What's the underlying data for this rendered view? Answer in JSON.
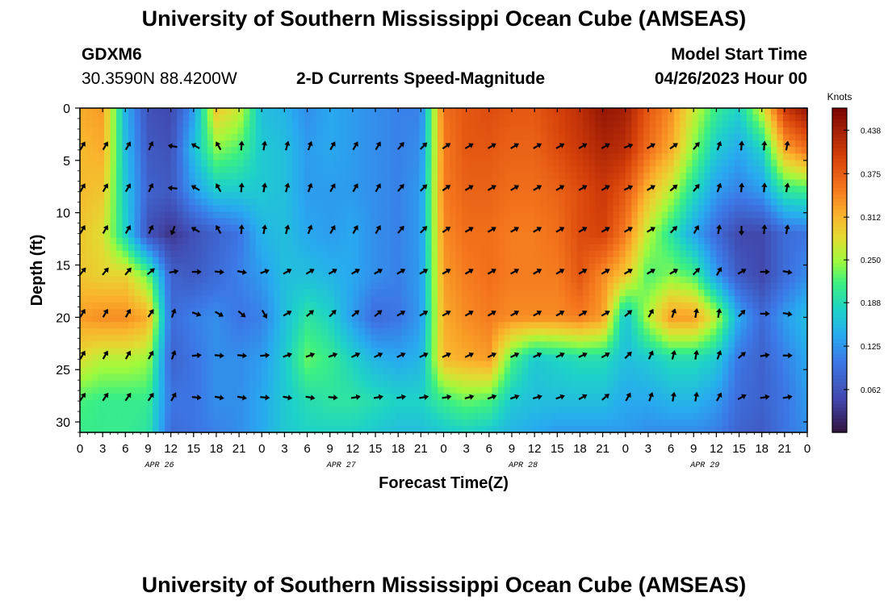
{
  "title": "University of Southern Mississippi Ocean Cube (AMSEAS)",
  "footer_title": "University of Southern Mississippi Ocean Cube (AMSEAS)",
  "station": {
    "name": "GDXM6",
    "coords": "30.3590N  88.4200W"
  },
  "model": {
    "label": "Model Start Time",
    "start": "04/26/2023 Hour 00"
  },
  "colors": {
    "arrow": "#000000",
    "frame": "#000000"
  },
  "chart_data": {
    "type": "heatmap",
    "title": "2-D Currents Speed-Magnitude",
    "xlabel": "Forecast Time(Z)",
    "ylabel": "Depth (ft)",
    "x_ticks": [
      "0",
      "3",
      "6",
      "9",
      "12",
      "15",
      "18",
      "21",
      "0",
      "3",
      "6",
      "9",
      "12",
      "15",
      "18",
      "21",
      "0",
      "3",
      "6",
      "9",
      "12",
      "15",
      "18",
      "21",
      "0",
      "3",
      "6",
      "9",
      "12",
      "15",
      "18",
      "21",
      "0"
    ],
    "day_labels": [
      "APR 26",
      "APR 27",
      "APR 28",
      "APR 29"
    ],
    "xlim_hours": [
      0,
      96
    ],
    "ylim": [
      0,
      31
    ],
    "y_ticks": [
      0,
      5,
      10,
      15,
      20,
      25,
      30
    ],
    "colorbar": {
      "label": "Knots",
      "range": [
        0,
        0.47
      ],
      "ticks": [
        "0.438",
        "0.375",
        "0.312",
        "0.250",
        "0.188",
        "0.125",
        "0.062"
      ],
      "tick_values": [
        0.438,
        0.375,
        0.312,
        0.25,
        0.188,
        0.125,
        0.062
      ]
    },
    "grid_hours": [
      0,
      3,
      6,
      9,
      12,
      15,
      18,
      21,
      24,
      27,
      30,
      33,
      36,
      39,
      42,
      45,
      48,
      51,
      54,
      57,
      60,
      63,
      66,
      69,
      72,
      75,
      78,
      81,
      84,
      87,
      90,
      93,
      96
    ],
    "grid_depths": [
      0,
      4,
      8,
      12,
      16,
      20,
      24,
      28,
      31
    ],
    "speed_knots": [
      [
        0.32,
        0.33,
        0.15,
        0.06,
        0.05,
        0.13,
        0.3,
        0.27,
        0.16,
        0.15,
        0.12,
        0.14,
        0.13,
        0.12,
        0.11,
        0.11,
        0.36,
        0.38,
        0.39,
        0.38,
        0.38,
        0.4,
        0.42,
        0.45,
        0.44,
        0.38,
        0.34,
        0.27,
        0.21,
        0.18,
        0.27,
        0.41,
        0.45
      ],
      [
        0.31,
        0.32,
        0.16,
        0.07,
        0.06,
        0.16,
        0.24,
        0.22,
        0.17,
        0.16,
        0.13,
        0.14,
        0.13,
        0.12,
        0.11,
        0.12,
        0.35,
        0.38,
        0.38,
        0.37,
        0.37,
        0.39,
        0.41,
        0.43,
        0.42,
        0.36,
        0.32,
        0.24,
        0.17,
        0.14,
        0.18,
        0.32,
        0.36
      ],
      [
        0.31,
        0.3,
        0.17,
        0.08,
        0.07,
        0.13,
        0.17,
        0.17,
        0.17,
        0.16,
        0.13,
        0.13,
        0.13,
        0.12,
        0.11,
        0.13,
        0.35,
        0.37,
        0.37,
        0.36,
        0.36,
        0.37,
        0.39,
        0.41,
        0.38,
        0.31,
        0.26,
        0.19,
        0.13,
        0.11,
        0.13,
        0.2,
        0.21
      ],
      [
        0.3,
        0.28,
        0.18,
        0.06,
        0.03,
        0.06,
        0.08,
        0.1,
        0.15,
        0.16,
        0.14,
        0.13,
        0.14,
        0.12,
        0.11,
        0.13,
        0.34,
        0.36,
        0.36,
        0.35,
        0.35,
        0.36,
        0.39,
        0.4,
        0.35,
        0.26,
        0.2,
        0.14,
        0.09,
        0.05,
        0.05,
        0.09,
        0.1
      ],
      [
        0.3,
        0.29,
        0.29,
        0.23,
        0.08,
        0.07,
        0.09,
        0.11,
        0.13,
        0.16,
        0.16,
        0.15,
        0.14,
        0.12,
        0.11,
        0.13,
        0.33,
        0.35,
        0.36,
        0.35,
        0.35,
        0.35,
        0.38,
        0.34,
        0.3,
        0.22,
        0.24,
        0.22,
        0.13,
        0.07,
        0.05,
        0.09,
        0.12
      ],
      [
        0.33,
        0.34,
        0.34,
        0.32,
        0.09,
        0.11,
        0.12,
        0.1,
        0.11,
        0.16,
        0.2,
        0.18,
        0.13,
        0.09,
        0.1,
        0.13,
        0.32,
        0.34,
        0.35,
        0.34,
        0.34,
        0.34,
        0.35,
        0.33,
        0.16,
        0.26,
        0.33,
        0.33,
        0.26,
        0.14,
        0.09,
        0.13,
        0.16
      ],
      [
        0.28,
        0.26,
        0.26,
        0.25,
        0.08,
        0.1,
        0.12,
        0.12,
        0.13,
        0.17,
        0.23,
        0.21,
        0.18,
        0.15,
        0.14,
        0.15,
        0.31,
        0.32,
        0.33,
        0.22,
        0.17,
        0.18,
        0.19,
        0.19,
        0.16,
        0.17,
        0.19,
        0.19,
        0.17,
        0.1,
        0.08,
        0.11,
        0.14
      ],
      [
        0.22,
        0.21,
        0.21,
        0.21,
        0.1,
        0.1,
        0.12,
        0.12,
        0.14,
        0.17,
        0.19,
        0.2,
        0.2,
        0.19,
        0.18,
        0.18,
        0.21,
        0.23,
        0.22,
        0.17,
        0.16,
        0.16,
        0.16,
        0.16,
        0.14,
        0.14,
        0.15,
        0.15,
        0.13,
        0.09,
        0.08,
        0.1,
        0.13
      ],
      [
        0.21,
        0.21,
        0.21,
        0.2,
        0.09,
        0.1,
        0.11,
        0.12,
        0.14,
        0.17,
        0.18,
        0.18,
        0.18,
        0.17,
        0.16,
        0.16,
        0.17,
        0.18,
        0.17,
        0.15,
        0.14,
        0.13,
        0.13,
        0.13,
        0.13,
        0.12,
        0.12,
        0.12,
        0.11,
        0.08,
        0.07,
        0.1,
        0.12
      ]
    ],
    "arrow_depths": [
      3.5,
      7.5,
      11.5,
      15.5,
      19.5,
      23.5,
      27.5
    ],
    "arrow_hours": [
      0,
      3,
      6,
      9,
      12,
      15,
      18,
      21,
      24,
      27,
      30,
      33,
      36,
      39,
      42,
      45,
      48,
      51,
      54,
      57,
      60,
      63,
      66,
      69,
      72,
      75,
      78,
      81,
      84,
      87,
      90,
      93
    ],
    "arrow_dir_deg": [
      [
        30,
        30,
        30,
        25,
        280,
        300,
        330,
        5,
        10,
        15,
        20,
        30,
        30,
        30,
        40,
        45,
        55,
        60,
        60,
        60,
        60,
        60,
        60,
        60,
        70,
        60,
        55,
        40,
        20,
        5,
        5,
        10
      ],
      [
        30,
        30,
        30,
        25,
        275,
        300,
        330,
        5,
        10,
        15,
        20,
        30,
        30,
        30,
        40,
        45,
        55,
        60,
        60,
        60,
        60,
        60,
        60,
        60,
        65,
        60,
        50,
        40,
        20,
        5,
        5,
        10
      ],
      [
        30,
        30,
        30,
        25,
        200,
        300,
        330,
        5,
        10,
        15,
        20,
        30,
        30,
        30,
        40,
        45,
        55,
        60,
        60,
        60,
        60,
        60,
        60,
        60,
        60,
        60,
        45,
        30,
        10,
        180,
        5,
        10
      ],
      [
        40,
        40,
        40,
        50,
        80,
        90,
        95,
        100,
        70,
        60,
        60,
        60,
        60,
        60,
        60,
        60,
        60,
        60,
        60,
        60,
        60,
        60,
        60,
        60,
        60,
        60,
        60,
        45,
        30,
        60,
        90,
        100
      ],
      [
        30,
        30,
        30,
        35,
        20,
        110,
        120,
        130,
        150,
        60,
        50,
        45,
        50,
        50,
        60,
        60,
        60,
        60,
        60,
        60,
        60,
        60,
        60,
        60,
        50,
        30,
        20,
        10,
        10,
        45,
        90,
        100
      ],
      [
        30,
        30,
        30,
        30,
        20,
        85,
        95,
        95,
        85,
        70,
        70,
        70,
        65,
        65,
        65,
        65,
        65,
        65,
        65,
        65,
        65,
        65,
        65,
        60,
        45,
        25,
        15,
        10,
        20,
        50,
        80,
        90
      ],
      [
        35,
        35,
        35,
        35,
        30,
        95,
        100,
        100,
        95,
        100,
        100,
        95,
        80,
        80,
        80,
        80,
        80,
        75,
        70,
        70,
        75,
        70,
        60,
        50,
        30,
        20,
        10,
        10,
        30,
        60,
        80,
        80
      ]
    ]
  }
}
